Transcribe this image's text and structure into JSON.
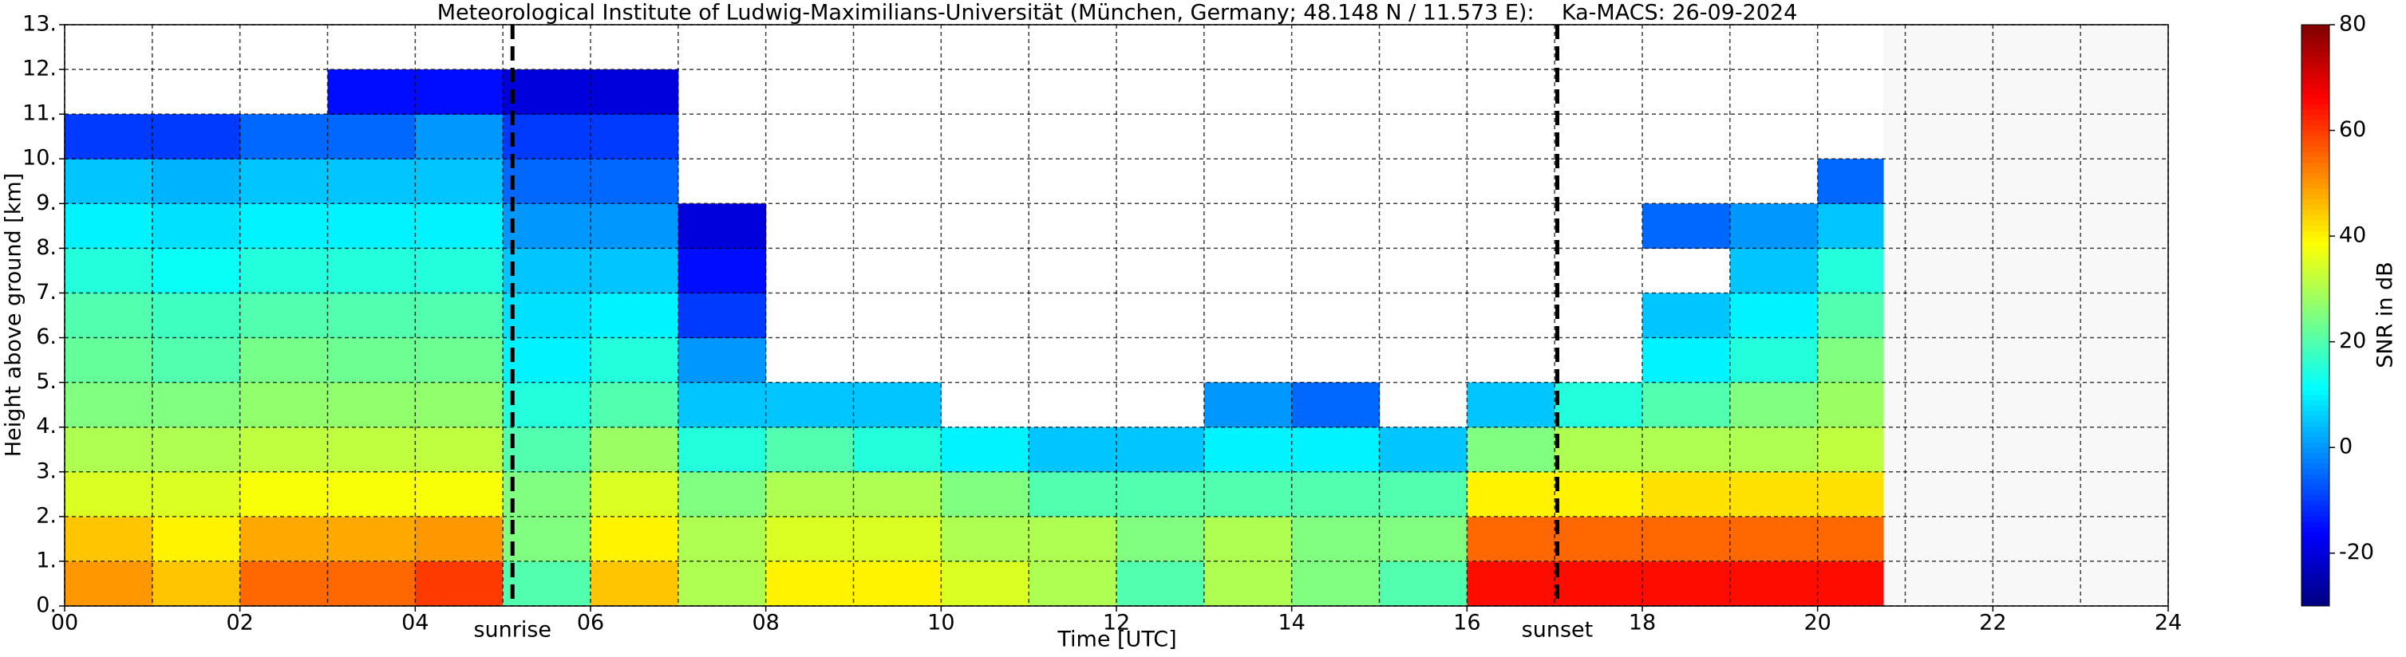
{
  "chart_data": {
    "type": "heatmap",
    "title": "Meteorological Institute of Ludwig-Maximilians-Universität (München, Germany; 48.148 N / 11.573 E):    Ka-MACS: 26-09-2024",
    "xlabel": "Time [UTC]",
    "ylabel": "Height above ground [km]",
    "colorbar_label": "SNR in dB",
    "colormap": "jet",
    "xlim": [
      0,
      24
    ],
    "ylim": [
      0,
      13
    ],
    "clim": [
      -30,
      80
    ],
    "xticks": [
      {
        "value": 0,
        "label": "00"
      },
      {
        "value": 2,
        "label": "02"
      },
      {
        "value": 4,
        "label": "04"
      },
      {
        "value": 6,
        "label": "06"
      },
      {
        "value": 8,
        "label": "08"
      },
      {
        "value": 10,
        "label": "10"
      },
      {
        "value": 12,
        "label": "12"
      },
      {
        "value": 14,
        "label": "14"
      },
      {
        "value": 16,
        "label": "16"
      },
      {
        "value": 18,
        "label": "18"
      },
      {
        "value": 20,
        "label": "20"
      },
      {
        "value": 22,
        "label": "22"
      },
      {
        "value": 24,
        "label": "24"
      }
    ],
    "xminorticks": [
      1,
      3,
      5,
      7,
      9,
      11,
      13,
      15,
      17,
      19,
      21,
      23
    ],
    "yticks": [
      {
        "value": 0,
        "label": "0."
      },
      {
        "value": 1,
        "label": "1."
      },
      {
        "value": 2,
        "label": "2."
      },
      {
        "value": 3,
        "label": "3."
      },
      {
        "value": 4,
        "label": "4."
      },
      {
        "value": 5,
        "label": "5."
      },
      {
        "value": 6,
        "label": "6."
      },
      {
        "value": 7,
        "label": "7."
      },
      {
        "value": 8,
        "label": "8."
      },
      {
        "value": 9,
        "label": "9."
      },
      {
        "value": 10,
        "label": "10."
      },
      {
        "value": 11,
        "label": "11."
      },
      {
        "value": 12,
        "label": "12."
      },
      {
        "value": 13,
        "label": "13."
      }
    ],
    "cticks": [
      -20,
      0,
      20,
      40,
      60,
      80
    ],
    "grid": true,
    "annotations": [
      {
        "text": "sunrise",
        "x": 5.11
      },
      {
        "text": "sunset",
        "x": 17.03
      }
    ],
    "x_bins": [
      0,
      1,
      2,
      3,
      4,
      5,
      6,
      7,
      8,
      9,
      10,
      11,
      12,
      13,
      14,
      15,
      16,
      17,
      18,
      19,
      20,
      20.75
    ],
    "y_bins": [
      0,
      1,
      2,
      3,
      4,
      5,
      6,
      7,
      8,
      9,
      10,
      11,
      12
    ],
    "z": [
      [
        50,
        45,
        35,
        30,
        25,
        22,
        20,
        15,
        10,
        5,
        -10,
        null
      ],
      [
        45,
        40,
        35,
        30,
        25,
        20,
        18,
        12,
        8,
        3,
        -10,
        null
      ],
      [
        55,
        48,
        38,
        32,
        27,
        24,
        20,
        15,
        10,
        5,
        -5,
        null
      ],
      [
        55,
        48,
        38,
        32,
        27,
        23,
        20,
        15,
        10,
        5,
        -5,
        -15
      ],
      [
        60,
        50,
        38,
        32,
        27,
        23,
        20,
        15,
        10,
        5,
        0,
        -15
      ],
      [
        20,
        25,
        25,
        20,
        15,
        10,
        8,
        5,
        0,
        -5,
        -10,
        -20
      ],
      [
        45,
        40,
        35,
        28,
        20,
        15,
        10,
        5,
        0,
        -5,
        -10,
        -20
      ],
      [
        30,
        30,
        25,
        15,
        5,
        0,
        -10,
        -15,
        -20,
        null,
        null,
        null
      ],
      [
        40,
        35,
        30,
        20,
        5,
        null,
        null,
        null,
        null,
        null,
        null,
        null
      ],
      [
        40,
        35,
        30,
        15,
        5,
        null,
        null,
        null,
        null,
        null,
        null,
        null
      ],
      [
        35,
        30,
        25,
        10,
        null,
        null,
        null,
        null,
        null,
        null,
        null,
        null
      ],
      [
        30,
        30,
        20,
        5,
        null,
        null,
        null,
        null,
        null,
        null,
        null,
        null
      ],
      [
        20,
        25,
        20,
        5,
        null,
        null,
        null,
        null,
        null,
        null,
        null,
        null
      ],
      [
        30,
        30,
        20,
        10,
        0,
        null,
        null,
        null,
        null,
        null,
        null,
        null
      ],
      [
        25,
        25,
        20,
        10,
        -5,
        null,
        null,
        null,
        null,
        null,
        null,
        null
      ],
      [
        20,
        25,
        20,
        5,
        null,
        null,
        null,
        null,
        null,
        null,
        null,
        null
      ],
      [
        65,
        55,
        40,
        25,
        5,
        null,
        null,
        null,
        null,
        null,
        null,
        null
      ],
      [
        65,
        55,
        40,
        30,
        15,
        null,
        null,
        null,
        null,
        null,
        null,
        null
      ],
      [
        65,
        55,
        42,
        30,
        20,
        10,
        5,
        null,
        -5,
        null,
        null,
        null
      ],
      [
        65,
        55,
        42,
        30,
        25,
        15,
        10,
        5,
        0,
        null,
        null,
        null
      ],
      [
        65,
        55,
        42,
        32,
        28,
        25,
        20,
        15,
        5,
        -5,
        null,
        null
      ]
    ]
  }
}
